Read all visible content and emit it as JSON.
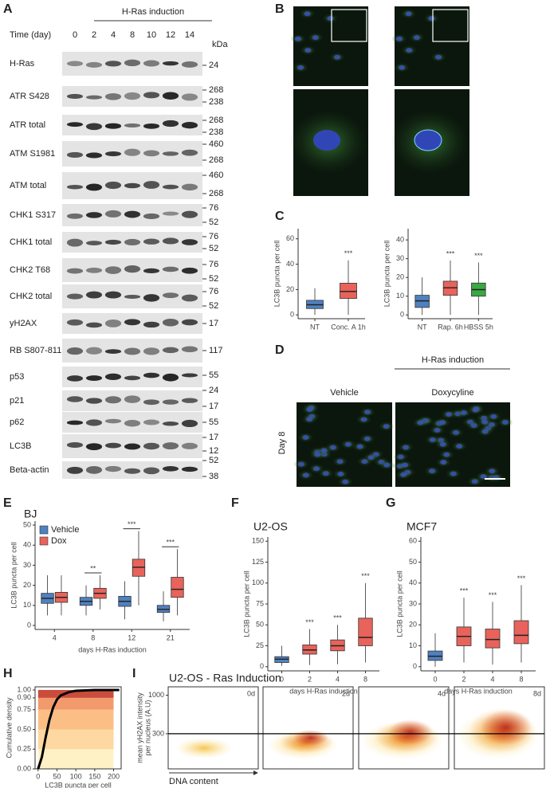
{
  "panel_a": {
    "label": "A",
    "induction": "H-Ras induction",
    "time_label": "Time (day)",
    "lanes": [
      "0",
      "2",
      "4",
      "8",
      "10",
      "12",
      "14"
    ],
    "kda": "kDa",
    "blots": [
      {
        "name": "H-Ras",
        "markers": [
          24
        ]
      },
      {
        "name": "ATR S428",
        "markers": [
          268,
          238
        ]
      },
      {
        "name": "ATR total",
        "markers": [
          268,
          238
        ]
      },
      {
        "name": "ATM S1981",
        "markers": [
          460,
          268
        ]
      },
      {
        "name": "ATM total",
        "markers": [
          460,
          268
        ]
      },
      {
        "name": "CHK1 S317",
        "markers": [
          76,
          52
        ]
      },
      {
        "name": "CHK1 total",
        "markers": [
          76,
          52
        ]
      },
      {
        "name": "CHK2 T68",
        "markers": [
          76,
          52
        ]
      },
      {
        "name": "CHK2 total",
        "markers": [
          76,
          52
        ]
      },
      {
        "name": "yH2AX",
        "markers": [
          17
        ]
      },
      {
        "name": "RB S807-811",
        "markers": [
          117
        ]
      },
      {
        "name": "p53",
        "markers": [
          55
        ]
      },
      {
        "name": "p21",
        "markers": [
          24,
          17
        ]
      },
      {
        "name": "p62",
        "markers": [
          55
        ]
      },
      {
        "name": "LC3B",
        "markers": [
          17,
          12
        ]
      },
      {
        "name": "Beta-actin",
        "markers": [
          52,
          38
        ]
      }
    ]
  },
  "panel_b": {
    "label": "B"
  },
  "panel_c": {
    "label": "C",
    "charts": [
      {
        "ylabel": "LC3B puncta per cell",
        "categories": [
          "NT",
          "Conc. A 1h"
        ],
        "colors": [
          "#4f81c0",
          "#e8635b"
        ],
        "ylim": [
          -3,
          68
        ],
        "yticks": [
          0,
          20,
          40,
          60
        ],
        "q1": [
          5,
          13
        ],
        "median": [
          8,
          18.5
        ],
        "q3": [
          11.5,
          25
        ],
        "whisker_low": [
          0,
          0
        ],
        "whisker_high": [
          21,
          43
        ],
        "significance": [
          null,
          "***"
        ]
      },
      {
        "ylabel": "LC3B puncta per cell",
        "categories": [
          "NT",
          "Rap. 6h",
          "HBSS 5h"
        ],
        "colors": [
          "#4f81c0",
          "#e8635b",
          "#3aa845"
        ],
        "ylim": [
          -2,
          46
        ],
        "yticks": [
          0,
          10,
          20,
          30,
          40
        ],
        "q1": [
          4,
          10.5,
          10
        ],
        "median": [
          7.5,
          14.5,
          13.5
        ],
        "q3": [
          10.5,
          18,
          17
        ],
        "whisker_low": [
          0,
          0,
          0
        ],
        "whisker_high": [
          20,
          29,
          28
        ],
        "significance": [
          null,
          "***",
          "***"
        ]
      }
    ]
  },
  "panel_d": {
    "label": "D",
    "induction": "H-Ras induction",
    "conditions": [
      "Vehicle",
      "Doxycyline"
    ],
    "row_label": "Day 8"
  },
  "panel_e": {
    "label": "E",
    "title": "BJ",
    "chart": {
      "ylabel": "LC3B puncta per cell",
      "xlabel": "days H-Ras induction",
      "categories": [
        "4",
        "8",
        "12",
        "21"
      ],
      "ylim": [
        -2,
        52
      ],
      "yticks": [
        0,
        10,
        20,
        30,
        40,
        50
      ],
      "legend": "top-left",
      "series": [
        {
          "name": "Vehicle",
          "color": "#4f81c0",
          "q1": [
            11,
            10,
            9.5,
            6.5
          ],
          "median": [
            13.5,
            12,
            12,
            8
          ],
          "q3": [
            16,
            14,
            14.5,
            10
          ],
          "whisker_low": [
            5,
            5,
            3,
            2
          ],
          "whisker_high": [
            25,
            20,
            22,
            17
          ]
        },
        {
          "name": "Dox",
          "color": "#e8635b",
          "q1": [
            11.5,
            13.5,
            24.5,
            14
          ],
          "median": [
            14,
            16,
            29,
            18
          ],
          "q3": [
            16.5,
            18.5,
            33,
            24
          ],
          "whisker_low": [
            5,
            8,
            10,
            5
          ],
          "whisker_high": [
            25,
            25,
            47,
            38
          ]
        }
      ],
      "significance": [
        null,
        "**",
        "***",
        "***"
      ]
    }
  },
  "panel_f": {
    "label": "F",
    "title": "U2-OS",
    "chart": {
      "ylabel": "LC3B puncta per cell",
      "xlabel": "days H-Ras induction",
      "categories": [
        "0",
        "2",
        "4",
        "8"
      ],
      "colors": [
        "#4f81c0",
        "#e8635b",
        "#e8635b",
        "#e8635b"
      ],
      "ylim": [
        -5,
        155
      ],
      "yticks": [
        0,
        25,
        50,
        75,
        100,
        125,
        150
      ],
      "q1": [
        5,
        15,
        19,
        25
      ],
      "median": [
        9,
        20,
        25,
        35
      ],
      "q3": [
        12,
        26,
        32,
        58
      ],
      "whisker_low": [
        1,
        2,
        3,
        5
      ],
      "whisker_high": [
        25,
        45,
        50,
        100
      ],
      "significance": [
        null,
        "***",
        "***",
        "***"
      ]
    }
  },
  "panel_g": {
    "label": "G",
    "title": "MCF7",
    "chart": {
      "ylabel": "LC3B puncta per cell",
      "xlabel": "days H-Ras induction",
      "categories": [
        "0",
        "2",
        "4",
        "8"
      ],
      "colors": [
        "#4f81c0",
        "#e8635b",
        "#e8635b",
        "#e8635b"
      ],
      "ylim": [
        -2,
        62
      ],
      "yticks": [
        0,
        10,
        20,
        30,
        40,
        50,
        60
      ],
      "q1": [
        3,
        10,
        9,
        11
      ],
      "median": [
        5,
        14.5,
        13,
        15
      ],
      "q3": [
        7.5,
        19,
        18,
        22
      ],
      "whisker_low": [
        0,
        2,
        1,
        2
      ],
      "whisker_high": [
        16,
        33,
        31,
        39
      ],
      "significance": [
        null,
        "***",
        "***",
        "***"
      ]
    }
  },
  "panel_h": {
    "label": "H",
    "ylabel": "Cumulative density",
    "xlabel": "LC3B puncta per cell",
    "xlim": [
      -8,
      220
    ],
    "ylim": [
      0,
      1.04
    ],
    "xticks": [
      0,
      50,
      100,
      150,
      200
    ],
    "yticks": [
      {
        "value": 0,
        "label": "0.00"
      },
      {
        "value": 0.25,
        "label": "0.25"
      },
      {
        "value": 0.5,
        "label": "0.50"
      },
      {
        "value": 0.75,
        "label": "0.75"
      },
      {
        "value": 0.9,
        "label": "0.90"
      },
      {
        "value": 1,
        "label": "1.00"
      }
    ],
    "band_colors": [
      "#fff1c6",
      "#fdd8a0",
      "#fbbf85",
      "#f29a6c",
      "#c94c3c"
    ],
    "curve_color": "#000000",
    "curve": {
      "x": [
        0,
        10,
        20,
        30,
        40,
        50,
        60,
        80,
        100,
        150,
        200,
        215
      ],
      "y": [
        0,
        0.15,
        0.4,
        0.62,
        0.78,
        0.88,
        0.93,
        0.97,
        0.99,
        1,
        1,
        1
      ]
    }
  },
  "panel_i": {
    "label": "I",
    "title": "U2-OS - Ras Induction",
    "ylabel": [
      "mean yH2AX intensity",
      "per nucleus (A.U)"
    ],
    "xlabel": "DNA content",
    "panels": [
      "0d",
      "2d",
      "4d",
      "8d"
    ],
    "log": true,
    "ylim": [
      100,
      1300
    ],
    "yticks": [
      300,
      1000
    ],
    "threshold": 300
  }
}
